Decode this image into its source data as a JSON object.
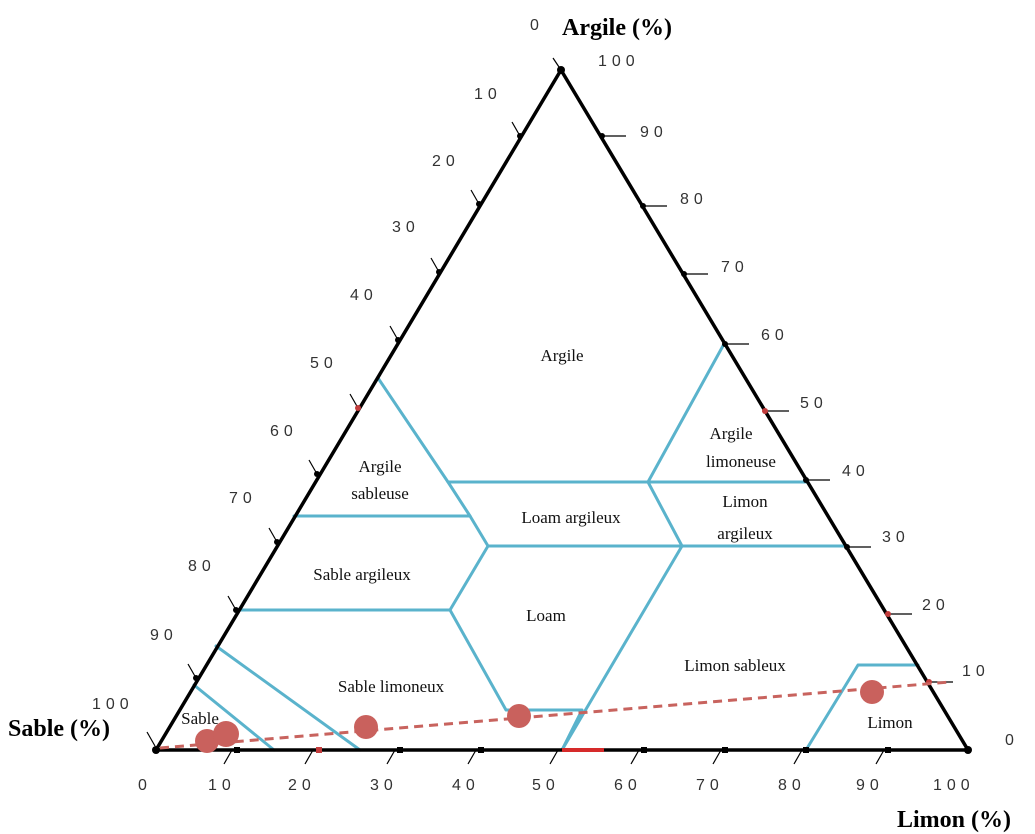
{
  "axes": {
    "argile": "Argile (%)",
    "sable": "Sable (%)",
    "limon": "Limon (%)"
  },
  "ticks": {
    "argile_top_zero": "0",
    "sable_left": [
      "100",
      "90",
      "80",
      "70",
      "60",
      "50",
      "40",
      "30",
      "20",
      "10"
    ],
    "argile_right": [
      "100",
      "90",
      "80",
      "70",
      "60",
      "50",
      "40",
      "30",
      "20",
      "10",
      "0"
    ],
    "limon_bottom": [
      "0",
      "10",
      "20",
      "30",
      "40",
      "50",
      "60",
      "70",
      "80",
      "90",
      "100"
    ]
  },
  "regions": {
    "argile": "Argile",
    "argile_sableuse_1": "Argile",
    "argile_sableuse_2": "sableuse",
    "argile_limoneuse_1": "Argile",
    "argile_limoneuse_2": "limoneuse",
    "loam_argileux": "Loam argileux",
    "limon_argileux_1": "Limon",
    "limon_argileux_2": "argileux",
    "sable_argileux": "Sable argileux",
    "loam": "Loam",
    "limon_sableux": "Limon sableux",
    "sable_limoneux": "Sable limoneux",
    "sable": "Sable",
    "limon": "Limon"
  },
  "colors": {
    "boundary": "#5ab3cc",
    "samples": "#c9615d",
    "trend_line": "#c8635e",
    "frame": "#000000"
  }
}
